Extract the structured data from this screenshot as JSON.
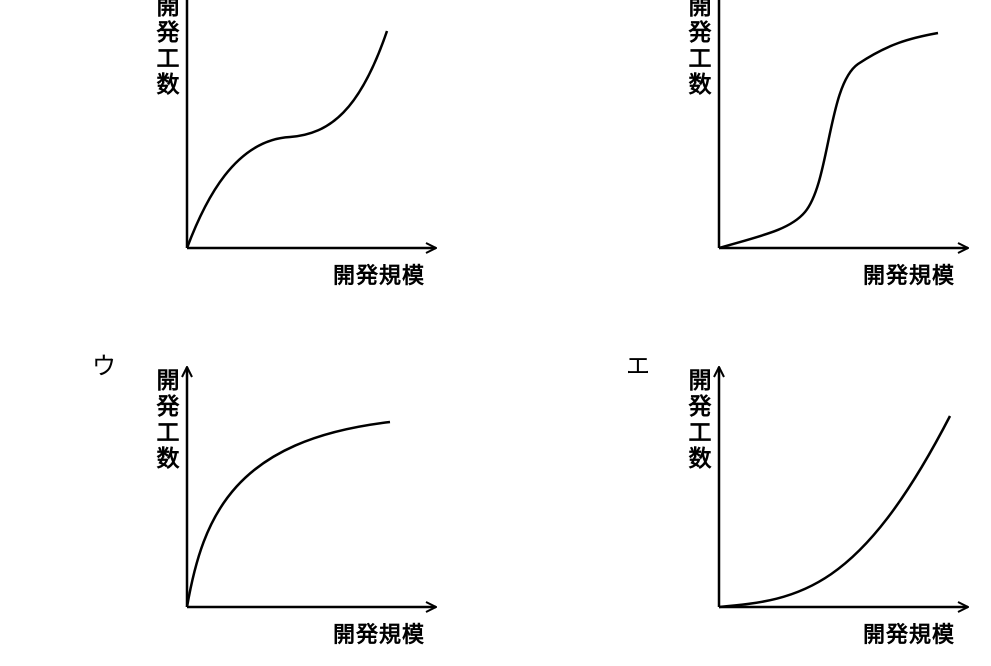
{
  "panels": [
    {
      "y_label": "開発工数",
      "x_label": "開発規模"
    },
    {
      "y_label": "開発工数",
      "x_label": "開発規模"
    },
    {
      "letter": "ウ",
      "y_label": "開発工数",
      "x_label": "開発規模"
    },
    {
      "letter": "エ",
      "y_label": "開発工数",
      "x_label": "開発規模"
    }
  ]
}
